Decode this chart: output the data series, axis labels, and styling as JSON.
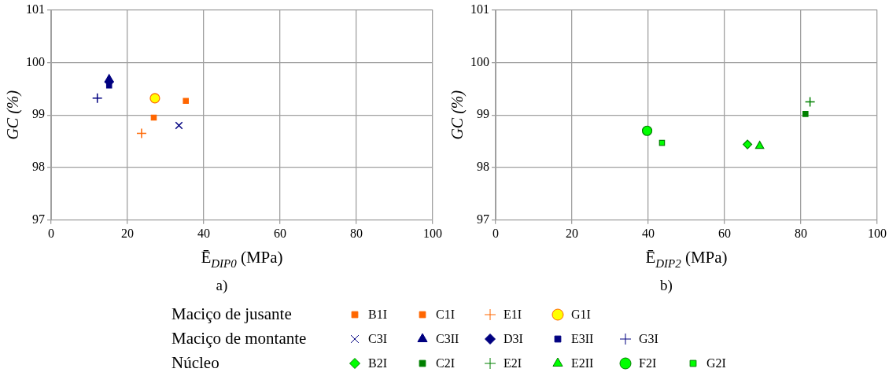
{
  "chart_data": [
    {
      "type": "scatter",
      "xlabel": "Ē$_{DIP0}$ (MPa)",
      "ylabel": "GC (%)",
      "xlim": [
        0,
        100
      ],
      "xticks": [
        0,
        20,
        40,
        60,
        80,
        100
      ],
      "ylim": [
        97,
        101
      ],
      "yticks": [
        97,
        98,
        99,
        100,
        101
      ],
      "grid": true,
      "legend": "bottom",
      "annotations": [
        "a)",
        "Maciço de jusante",
        "Maciço de montante"
      ],
      "series": [
        {
          "name": "B1I",
          "color": "#ff6600",
          "marker": "square",
          "x": [
            26.9
          ],
          "values": [
            98.95
          ]
        },
        {
          "name": "C1I",
          "color": "#ff6600",
          "marker": "square",
          "x": [
            35.3
          ],
          "values": [
            99.27
          ]
        },
        {
          "name": "E1I",
          "color": "#ff6600",
          "marker": "cross",
          "x": [
            23.7
          ],
          "values": [
            98.65
          ]
        },
        {
          "name": "G1I",
          "color": "#ffff00",
          "marker": "circle",
          "x": [
            27.2
          ],
          "values": [
            99.32
          ]
        },
        {
          "name": "C3I",
          "color": "#000080",
          "marker": "x",
          "x": [
            33.5
          ],
          "values": [
            98.8
          ]
        },
        {
          "name": "C3II",
          "color": "#000080",
          "marker": "triangle",
          "x": [
            15.2
          ],
          "values": [
            99.68
          ]
        },
        {
          "name": "D3I",
          "color": "#000080",
          "marker": "diamond",
          "x": [
            15.2
          ],
          "values": [
            99.63
          ]
        },
        {
          "name": "E3II",
          "color": "#000080",
          "marker": "square",
          "x": [
            15.2
          ],
          "values": [
            99.56
          ]
        },
        {
          "name": "G3I",
          "color": "#000080",
          "marker": "cross",
          "x": [
            12.1
          ],
          "values": [
            99.32
          ]
        }
      ]
    },
    {
      "type": "scatter",
      "xlabel": "Ē$_{DIP2}$ (MPa)",
      "ylabel": "GC (%)",
      "xlim": [
        0,
        100
      ],
      "xticks": [
        0,
        20,
        40,
        60,
        80,
        100
      ],
      "ylim": [
        97,
        101
      ],
      "yticks": [
        97,
        98,
        99,
        100,
        101
      ],
      "grid": true,
      "legend": "bottom",
      "annotations": [
        "b)",
        "Núcleo"
      ],
      "series": [
        {
          "name": "B2I",
          "color": "#00ff00",
          "marker": "diamond",
          "x": [
            66.0
          ],
          "values": [
            98.44
          ]
        },
        {
          "name": "C2I",
          "color": "#008000",
          "marker": "square",
          "x": [
            81.2
          ],
          "values": [
            99.02
          ]
        },
        {
          "name": "E2I",
          "color": "#008000",
          "marker": "cross",
          "x": [
            82.4
          ],
          "values": [
            99.25
          ]
        },
        {
          "name": "E2II",
          "color": "#00ff00",
          "marker": "triangle",
          "x": [
            69.2
          ],
          "values": [
            98.41
          ]
        },
        {
          "name": "F2I",
          "color": "#00ff00",
          "marker": "circle",
          "x": [
            39.7
          ],
          "values": [
            98.7
          ]
        },
        {
          "name": "G2I",
          "color": "#00ff00",
          "marker": "square",
          "x": [
            43.6
          ],
          "values": [
            98.47
          ]
        }
      ]
    }
  ]
}
